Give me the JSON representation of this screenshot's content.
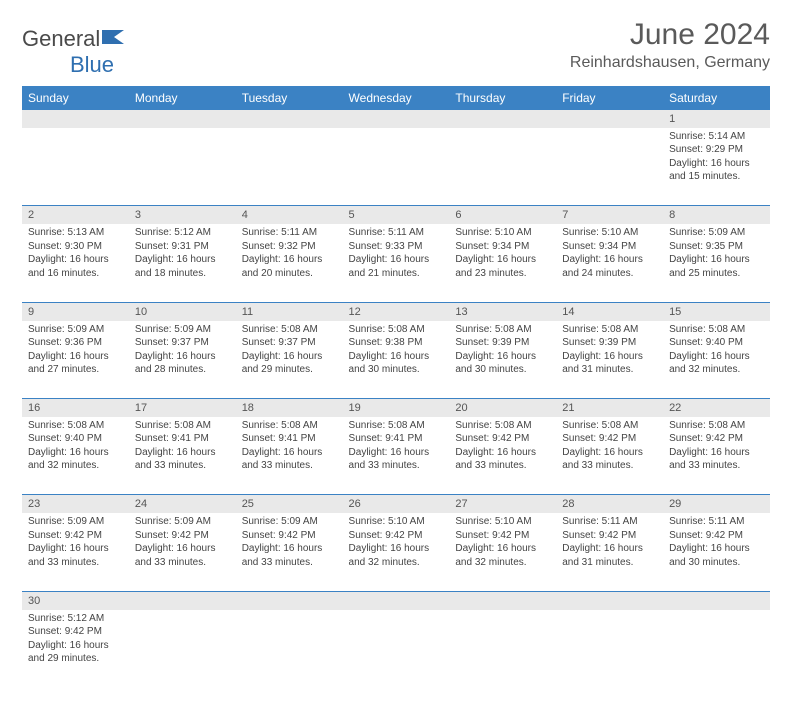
{
  "logo": {
    "text1": "General",
    "text2": "Blue"
  },
  "title": "June 2024",
  "subtitle": "Reinhardshausen, Germany",
  "colors": {
    "header_bg": "#3b82c4",
    "header_text": "#ffffff",
    "daynum_bg": "#e9e9e9",
    "border": "#3b82c4",
    "text": "#444444",
    "title_color": "#5a5a5a"
  },
  "day_headers": [
    "Sunday",
    "Monday",
    "Tuesday",
    "Wednesday",
    "Thursday",
    "Friday",
    "Saturday"
  ],
  "weeks": [
    [
      null,
      null,
      null,
      null,
      null,
      null,
      {
        "n": "1",
        "sr": "5:14 AM",
        "ss": "9:29 PM",
        "dl": "16 hours and 15 minutes."
      }
    ],
    [
      {
        "n": "2",
        "sr": "5:13 AM",
        "ss": "9:30 PM",
        "dl": "16 hours and 16 minutes."
      },
      {
        "n": "3",
        "sr": "5:12 AM",
        "ss": "9:31 PM",
        "dl": "16 hours and 18 minutes."
      },
      {
        "n": "4",
        "sr": "5:11 AM",
        "ss": "9:32 PM",
        "dl": "16 hours and 20 minutes."
      },
      {
        "n": "5",
        "sr": "5:11 AM",
        "ss": "9:33 PM",
        "dl": "16 hours and 21 minutes."
      },
      {
        "n": "6",
        "sr": "5:10 AM",
        "ss": "9:34 PM",
        "dl": "16 hours and 23 minutes."
      },
      {
        "n": "7",
        "sr": "5:10 AM",
        "ss": "9:34 PM",
        "dl": "16 hours and 24 minutes."
      },
      {
        "n": "8",
        "sr": "5:09 AM",
        "ss": "9:35 PM",
        "dl": "16 hours and 25 minutes."
      }
    ],
    [
      {
        "n": "9",
        "sr": "5:09 AM",
        "ss": "9:36 PM",
        "dl": "16 hours and 27 minutes."
      },
      {
        "n": "10",
        "sr": "5:09 AM",
        "ss": "9:37 PM",
        "dl": "16 hours and 28 minutes."
      },
      {
        "n": "11",
        "sr": "5:08 AM",
        "ss": "9:37 PM",
        "dl": "16 hours and 29 minutes."
      },
      {
        "n": "12",
        "sr": "5:08 AM",
        "ss": "9:38 PM",
        "dl": "16 hours and 30 minutes."
      },
      {
        "n": "13",
        "sr": "5:08 AM",
        "ss": "9:39 PM",
        "dl": "16 hours and 30 minutes."
      },
      {
        "n": "14",
        "sr": "5:08 AM",
        "ss": "9:39 PM",
        "dl": "16 hours and 31 minutes."
      },
      {
        "n": "15",
        "sr": "5:08 AM",
        "ss": "9:40 PM",
        "dl": "16 hours and 32 minutes."
      }
    ],
    [
      {
        "n": "16",
        "sr": "5:08 AM",
        "ss": "9:40 PM",
        "dl": "16 hours and 32 minutes."
      },
      {
        "n": "17",
        "sr": "5:08 AM",
        "ss": "9:41 PM",
        "dl": "16 hours and 33 minutes."
      },
      {
        "n": "18",
        "sr": "5:08 AM",
        "ss": "9:41 PM",
        "dl": "16 hours and 33 minutes."
      },
      {
        "n": "19",
        "sr": "5:08 AM",
        "ss": "9:41 PM",
        "dl": "16 hours and 33 minutes."
      },
      {
        "n": "20",
        "sr": "5:08 AM",
        "ss": "9:42 PM",
        "dl": "16 hours and 33 minutes."
      },
      {
        "n": "21",
        "sr": "5:08 AM",
        "ss": "9:42 PM",
        "dl": "16 hours and 33 minutes."
      },
      {
        "n": "22",
        "sr": "5:08 AM",
        "ss": "9:42 PM",
        "dl": "16 hours and 33 minutes."
      }
    ],
    [
      {
        "n": "23",
        "sr": "5:09 AM",
        "ss": "9:42 PM",
        "dl": "16 hours and 33 minutes."
      },
      {
        "n": "24",
        "sr": "5:09 AM",
        "ss": "9:42 PM",
        "dl": "16 hours and 33 minutes."
      },
      {
        "n": "25",
        "sr": "5:09 AM",
        "ss": "9:42 PM",
        "dl": "16 hours and 33 minutes."
      },
      {
        "n": "26",
        "sr": "5:10 AM",
        "ss": "9:42 PM",
        "dl": "16 hours and 32 minutes."
      },
      {
        "n": "27",
        "sr": "5:10 AM",
        "ss": "9:42 PM",
        "dl": "16 hours and 32 minutes."
      },
      {
        "n": "28",
        "sr": "5:11 AM",
        "ss": "9:42 PM",
        "dl": "16 hours and 31 minutes."
      },
      {
        "n": "29",
        "sr": "5:11 AM",
        "ss": "9:42 PM",
        "dl": "16 hours and 30 minutes."
      }
    ],
    [
      {
        "n": "30",
        "sr": "5:12 AM",
        "ss": "9:42 PM",
        "dl": "16 hours and 29 minutes."
      },
      null,
      null,
      null,
      null,
      null,
      null
    ]
  ],
  "labels": {
    "sunrise": "Sunrise: ",
    "sunset": "Sunset: ",
    "daylight": "Daylight: "
  }
}
